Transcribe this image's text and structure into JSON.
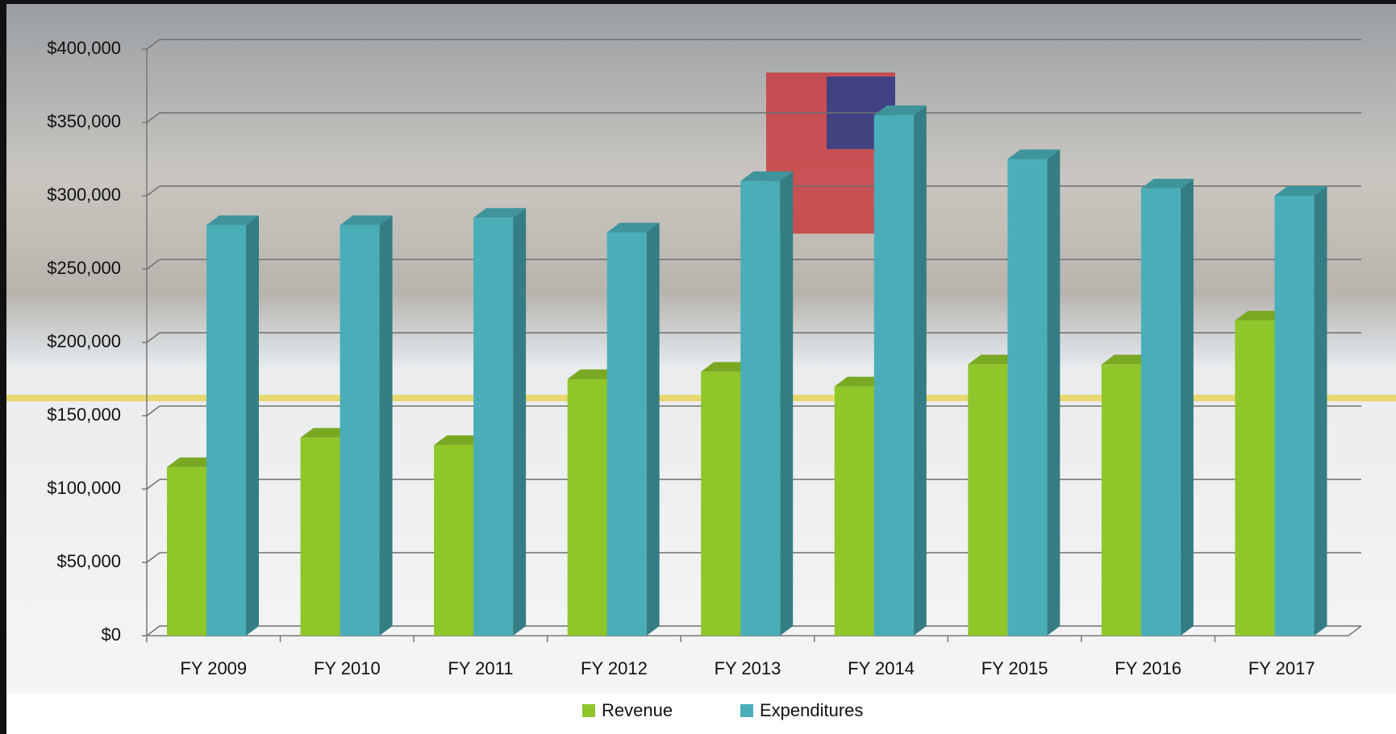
{
  "chart_data": {
    "type": "bar3d",
    "categories": [
      "FY 2009",
      "FY 2010",
      "FY 2011",
      "FY 2012",
      "FY 2013",
      "FY 2014",
      "FY 2015",
      "FY 2016",
      "FY 2017"
    ],
    "series": [
      {
        "name": "Revenue",
        "color": "#8fc629",
        "values": [
          115000,
          135000,
          130000,
          175000,
          180000,
          170000,
          185000,
          185000,
          215000
        ]
      },
      {
        "name": "Expenditures",
        "color": "#4aaeb8",
        "values": [
          280000,
          280000,
          285000,
          275000,
          310000,
          355000,
          325000,
          305000,
          300000
        ]
      }
    ],
    "ylim": [
      0,
      400000
    ],
    "yticks": [
      {
        "value": 0,
        "label": "$0"
      },
      {
        "value": 50000,
        "label": "$50,000"
      },
      {
        "value": 100000,
        "label": "$100,000"
      },
      {
        "value": 150000,
        "label": "$150,000"
      },
      {
        "value": 200000,
        "label": "$200,000"
      },
      {
        "value": 250000,
        "label": "$250,000"
      },
      {
        "value": 300000,
        "label": "$300,000"
      },
      {
        "value": 350000,
        "label": "$350,000"
      },
      {
        "value": 400000,
        "label": "$400,000"
      }
    ],
    "grid": true,
    "legend": "bottom"
  }
}
